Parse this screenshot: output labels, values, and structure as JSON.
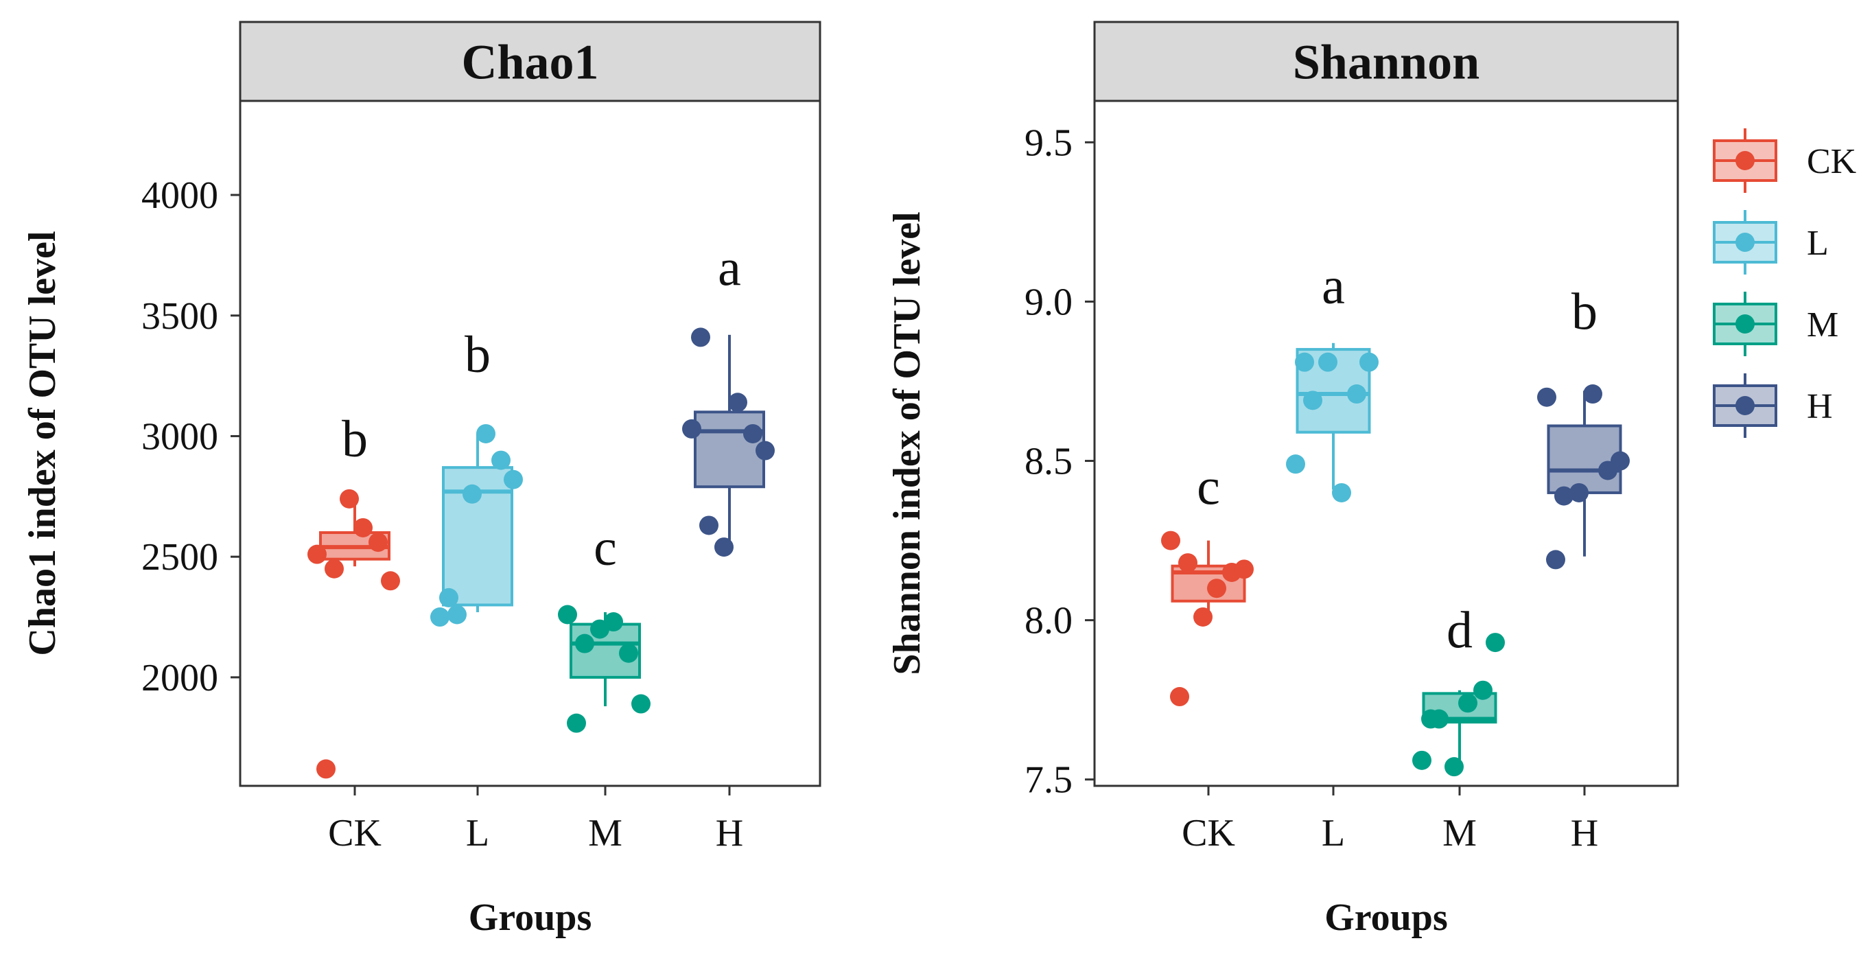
{
  "legend": {
    "items": [
      {
        "group": "CK",
        "label": "CK",
        "color": "#E64B35"
      },
      {
        "group": "L",
        "label": "L",
        "color": "#4DBBD5"
      },
      {
        "group": "M",
        "label": "M",
        "color": "#00A087"
      },
      {
        "group": "H",
        "label": "H",
        "color": "#3C5488"
      }
    ]
  },
  "chart_data": [
    {
      "type": "box",
      "title": "Chao1",
      "xlabel": "Groups",
      "ylabel": "Chao1 index of OTU level",
      "categories": [
        "CK",
        "L",
        "M",
        "H"
      ],
      "ylim": [
        1550,
        4390
      ],
      "yticks": [
        2000,
        2500,
        3000,
        3500,
        4000
      ],
      "groups": [
        {
          "name": "CK",
          "color": "#E64B35",
          "letter": "b",
          "letter_y": 2990,
          "whisker_low": 2460,
          "q1": 2490,
          "median": 2540,
          "q3": 2600,
          "whisker_high": 2740,
          "points": [
            2510,
            2450,
            2740,
            2620,
            2560,
            2400,
            1620
          ]
        },
        {
          "name": "L",
          "color": "#4DBBD5",
          "letter": "b",
          "letter_y": 3340,
          "whisker_low": 2270,
          "q1": 2300,
          "median": 2770,
          "q3": 2870,
          "whisker_high": 3010,
          "points": [
            2250,
            2260,
            2760,
            3010,
            2900,
            2820,
            2330
          ]
        },
        {
          "name": "M",
          "color": "#00A087",
          "letter": "c",
          "letter_y": 2540,
          "whisker_low": 1880,
          "q1": 2000,
          "median": 2140,
          "q3": 2220,
          "whisker_high": 2270,
          "points": [
            2260,
            2140,
            2200,
            2230,
            2100,
            1890,
            1810
          ]
        },
        {
          "name": "H",
          "color": "#3C5488",
          "letter": "a",
          "letter_y": 3700,
          "whisker_low": 2560,
          "q1": 2790,
          "median": 3020,
          "q3": 3100,
          "whisker_high": 3420,
          "points": [
            3030,
            2630,
            2540,
            3140,
            3010,
            2940,
            3410
          ]
        }
      ]
    },
    {
      "type": "box",
      "title": "Shannon",
      "xlabel": "Groups",
      "ylabel": "Shannon index of OTU level",
      "categories": [
        "CK",
        "L",
        "M",
        "H"
      ],
      "ylim": [
        7.48,
        9.63
      ],
      "yticks": [
        7.5,
        8.0,
        8.5,
        9.0,
        9.5
      ],
      "yticklabels": [
        "7.5",
        "8.0",
        "8.5",
        "9.0",
        "9.5"
      ],
      "groups": [
        {
          "name": "CK",
          "color": "#E64B35",
          "letter": "c",
          "letter_y": 8.42,
          "whisker_low": 8.02,
          "q1": 8.06,
          "median": 8.15,
          "q3": 8.17,
          "whisker_high": 8.25,
          "points": [
            8.25,
            8.18,
            8.01,
            8.1,
            8.15,
            8.16,
            7.76
          ]
        },
        {
          "name": "L",
          "color": "#4DBBD5",
          "letter": "a",
          "letter_y": 9.05,
          "whisker_low": 8.41,
          "q1": 8.59,
          "median": 8.71,
          "q3": 8.85,
          "whisker_high": 8.87,
          "points": [
            8.49,
            8.69,
            8.81,
            8.4,
            8.71,
            8.81,
            8.81
          ]
        },
        {
          "name": "M",
          "color": "#00A087",
          "letter": "d",
          "letter_y": 7.97,
          "whisker_low": 7.55,
          "q1": 7.68,
          "median": 7.69,
          "q3": 7.77,
          "whisker_high": 7.78,
          "points": [
            7.56,
            7.69,
            7.54,
            7.74,
            7.78,
            7.93,
            7.69
          ]
        },
        {
          "name": "H",
          "color": "#3C5488",
          "letter": "b",
          "letter_y": 8.97,
          "whisker_low": 8.2,
          "q1": 8.4,
          "median": 8.47,
          "q3": 8.61,
          "whisker_high": 8.72,
          "points": [
            8.7,
            8.39,
            8.4,
            8.71,
            8.47,
            8.5,
            8.19
          ]
        }
      ]
    }
  ]
}
